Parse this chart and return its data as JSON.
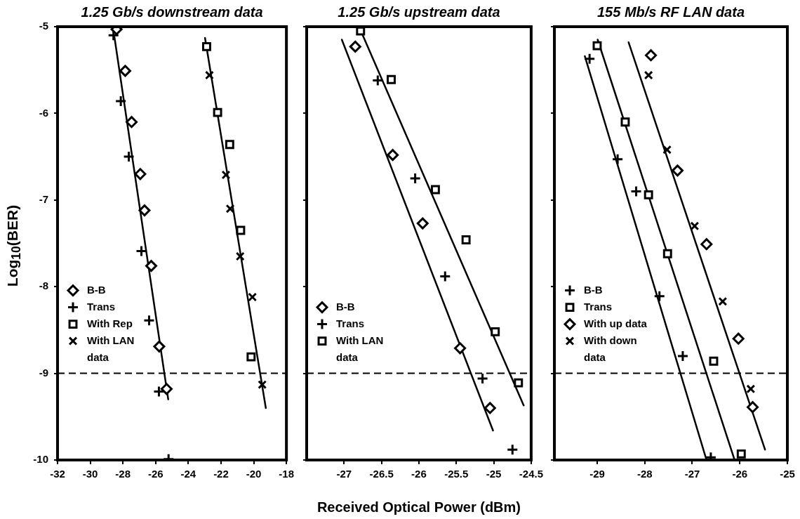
{
  "chart_data": [
    {
      "type": "scatter",
      "title": "1.25 Gb/s downstream data",
      "ylabel": "Log$_{10}$(BER)",
      "legend": "bottom left",
      "xlim": [
        -32,
        -18
      ],
      "xticks": [
        -32,
        -30,
        -28,
        -26,
        -24,
        -22,
        -20,
        -18
      ],
      "ylim": [
        -10,
        -5
      ],
      "yticks": [
        -10,
        -9,
        -8,
        -7,
        -6,
        -5
      ],
      "ref_lines": [
        {
          "axis": "y",
          "value": -9,
          "line_style": "dashed",
          "color": "#000000"
        }
      ],
      "series": [
        {
          "name": "B-B",
          "color": "#000000",
          "marker": "diamond",
          "x": [
            -28.39,
            -27.86,
            -27.47,
            -26.94,
            -26.68,
            -26.27,
            -25.78,
            -25.33
          ],
          "values": [
            -5.03,
            -5.51,
            -6.1,
            -6.7,
            -7.12,
            -7.76,
            -8.69,
            -9.18
          ]
        },
        {
          "name": "Trans",
          "color": "#000000",
          "marker": "plus",
          "x": [
            -28.58,
            -28.13,
            -27.64,
            -26.87,
            -26.4,
            -25.8,
            -25.21
          ],
          "values": [
            -5.1,
            -5.86,
            -6.5,
            -7.59,
            -8.39,
            -9.21,
            -9.99
          ]
        },
        {
          "name": "With Rep",
          "color": "#000000",
          "marker": "square",
          "x": [
            -22.88,
            -22.21,
            -21.47,
            -20.8,
            -20.16
          ],
          "values": [
            -5.23,
            -5.99,
            -6.36,
            -7.35,
            -8.81
          ]
        },
        {
          "name": "With LAN data",
          "color": "#000000",
          "marker": "cross",
          "x": [
            -22.71,
            -21.7,
            -21.44,
            -20.83,
            -20.08,
            -19.48
          ],
          "values": [
            -5.56,
            -6.71,
            -7.1,
            -7.65,
            -8.12,
            -9.13
          ]
        },
        {
          "type": "line",
          "color": "#000000",
          "marker": "none",
          "x": [
            -28.52,
            -25.23
          ],
          "values": [
            -5.12,
            -9.3
          ]
        },
        {
          "type": "line",
          "color": "#000000",
          "marker": "none",
          "x": [
            -22.98,
            -19.26
          ],
          "values": [
            -5.13,
            -9.4
          ]
        }
      ]
    },
    {
      "type": "scatter",
      "title": "1.25 Gb/s upstream data",
      "xlabel": "Received Optical Power (dBm)",
      "legend": "bottom left",
      "tick_labels": "x",
      "xlim": [
        -27.5,
        -24.5
      ],
      "xticks": [
        -27,
        -26.5,
        -26,
        -25.5,
        -25,
        -24.5
      ],
      "ylim": [
        -10,
        -5
      ],
      "yticks": [
        {
          "value": -10,
          "label": null
        },
        {
          "value": -9,
          "label": null
        },
        {
          "value": -8,
          "label": null
        },
        {
          "value": -7,
          "label": null
        },
        {
          "value": -6,
          "label": null
        },
        {
          "value": -5,
          "label": null
        }
      ],
      "ref_lines": [
        {
          "axis": "y",
          "value": -9,
          "line_style": "dashed",
          "color": "#000000"
        }
      ],
      "series": [
        {
          "name": "B-B",
          "color": "#000000",
          "marker": "diamond",
          "x": [
            -26.85,
            -26.35,
            -25.95,
            -25.45,
            -25.05
          ],
          "values": [
            -5.23,
            -6.48,
            -7.27,
            -8.71,
            -9.4
          ]
        },
        {
          "name": "Trans",
          "color": "#000000",
          "marker": "plus",
          "x": [
            -26.55,
            -26.05,
            -25.65,
            -25.15,
            -24.75
          ],
          "values": [
            -5.62,
            -6.75,
            -7.88,
            -9.06,
            -9.88
          ]
        },
        {
          "name": "With LAN data",
          "color": "#000000",
          "marker": "square",
          "x": [
            -26.78,
            -26.37,
            -25.78,
            -25.37,
            -24.98,
            -24.67
          ],
          "values": [
            -5.05,
            -5.61,
            -6.88,
            -7.46,
            -8.52,
            -9.11
          ]
        },
        {
          "type": "line",
          "color": "#000000",
          "marker": "none",
          "x": [
            -27.03,
            -25.01
          ],
          "values": [
            -5.15,
            -9.66
          ]
        },
        {
          "type": "line",
          "color": "#000000",
          "marker": "none",
          "x": [
            -26.78,
            -24.6
          ],
          "values": [
            -5.04,
            -9.37
          ]
        }
      ]
    },
    {
      "type": "scatter",
      "title": "155 Mb/s RF LAN data",
      "legend": "bottom left",
      "tick_labels": "x",
      "xlim": [
        -29.9,
        -25
      ],
      "xticks": [
        -29,
        -28,
        -27,
        -26,
        -25
      ],
      "ylim": [
        -10,
        -5
      ],
      "yticks": [
        {
          "value": -10,
          "label": null
        },
        {
          "value": -9,
          "label": null
        },
        {
          "value": -8,
          "label": null
        },
        {
          "value": -7,
          "label": null
        },
        {
          "value": -6,
          "label": null
        },
        {
          "value": -5,
          "label": null
        }
      ],
      "ref_lines": [
        {
          "axis": "y",
          "value": -9,
          "line_style": "dashed",
          "color": "#000000"
        }
      ],
      "series": [
        {
          "name": "B-B",
          "color": "#000000",
          "marker": "plus",
          "x": [
            -29.16,
            -28.57,
            -28.18,
            -27.69,
            -27.2,
            -26.61
          ],
          "values": [
            -5.37,
            -6.53,
            -6.9,
            -8.11,
            -8.8,
            -9.97
          ]
        },
        {
          "name": "Trans",
          "color": "#000000",
          "marker": "square",
          "x": [
            -29.0,
            -28.41,
            -27.92,
            -27.52,
            -26.55,
            -25.97
          ],
          "values": [
            -5.22,
            -6.1,
            -6.94,
            -7.62,
            -8.86,
            -9.93
          ]
        },
        {
          "name": "With up data",
          "color": "#000000",
          "marker": "diamond",
          "x": [
            -27.87,
            -27.31,
            -26.7,
            -26.03,
            -25.73
          ],
          "values": [
            -5.33,
            -6.66,
            -7.51,
            -8.6,
            -9.39
          ]
        },
        {
          "name": "With down data",
          "color": "#000000",
          "marker": "cross",
          "x": [
            -27.92,
            -27.53,
            -26.95,
            -26.36,
            -25.77
          ],
          "values": [
            -5.56,
            -6.42,
            -7.3,
            -8.17,
            -9.18
          ]
        },
        {
          "type": "line",
          "color": "#000000",
          "marker": "none",
          "x": [
            -29.26,
            -26.7
          ],
          "values": [
            -5.34,
            -10
          ]
        },
        {
          "type": "line",
          "color": "#000000",
          "marker": "none",
          "x": [
            -28.99,
            -26.11
          ],
          "values": [
            -5.15,
            -10
          ]
        },
        {
          "type": "line",
          "color": "#000000",
          "marker": "none",
          "x": [
            -28.34,
            -25.47
          ],
          "values": [
            -5.18,
            -9.88
          ]
        }
      ]
    }
  ]
}
